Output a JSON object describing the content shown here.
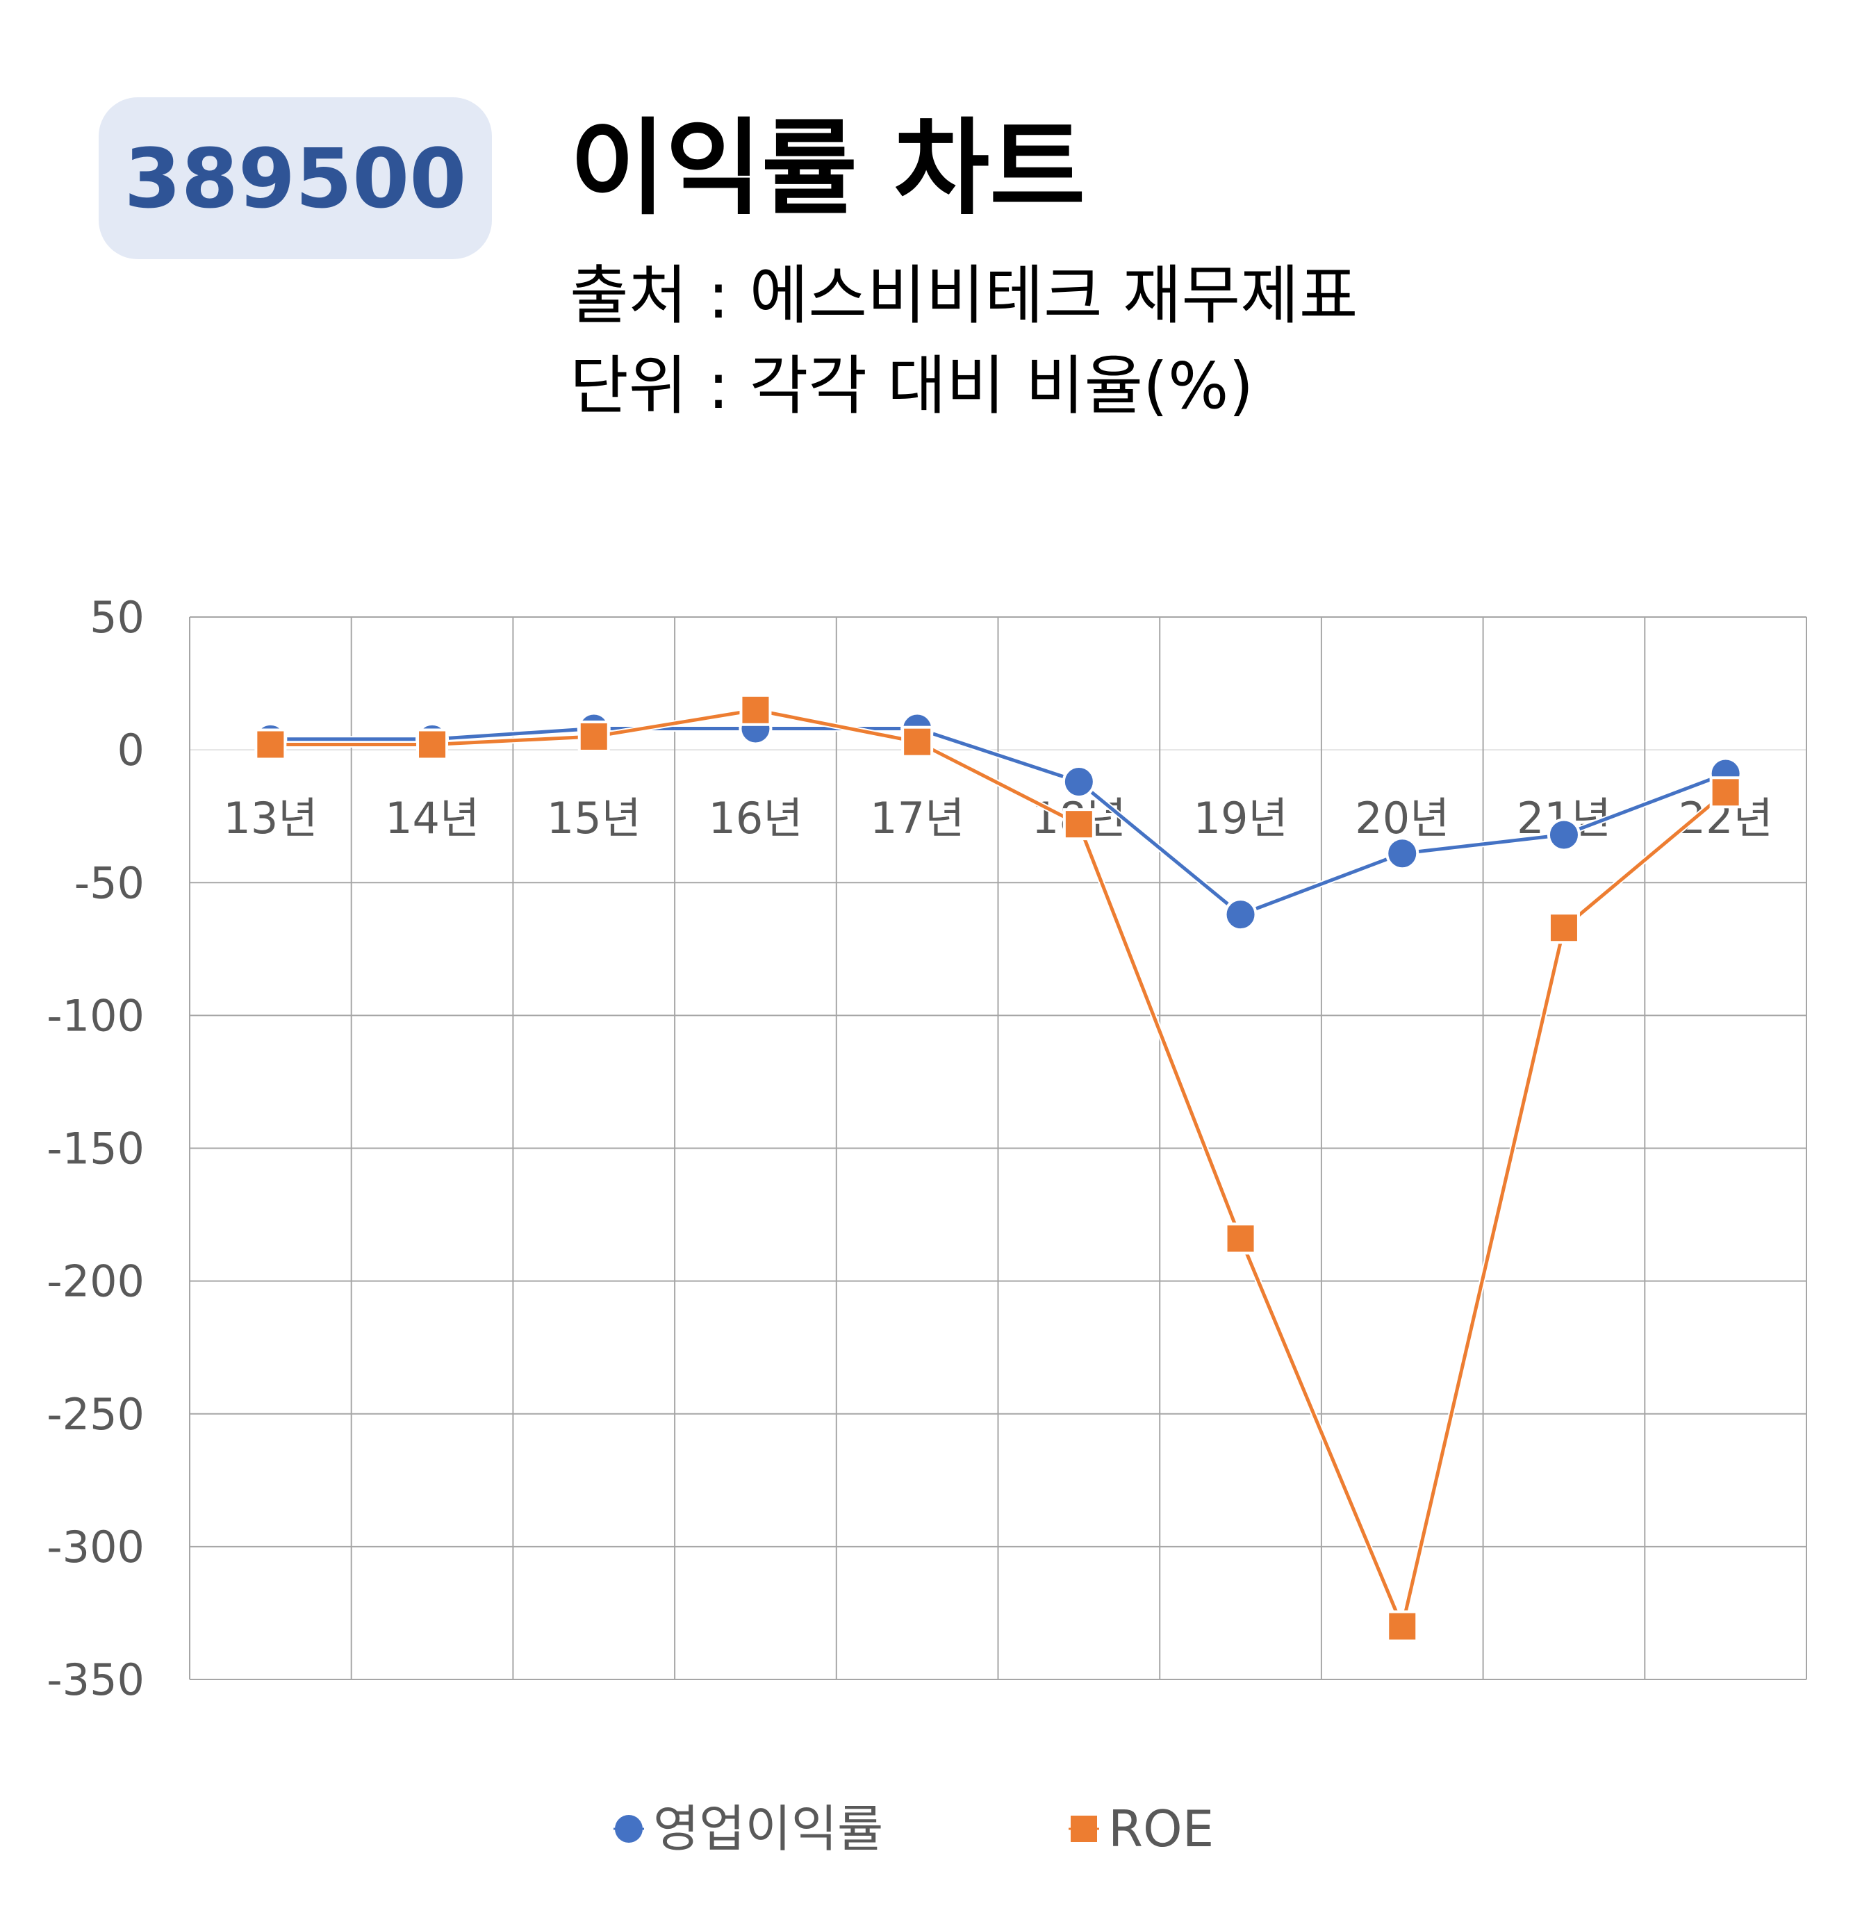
{
  "badge": {
    "code": "389500"
  },
  "header": {
    "title": "이익률 차트",
    "source": "출처 : 에스비비테크 재무제표",
    "unit": "단위 : 각각 대비 비율(%)"
  },
  "colors": {
    "series1": "#4472c4",
    "series2": "#ed7d31",
    "badge_bg": "#e3e9f5",
    "badge_text": "#2f5496",
    "grid": "#a6a6a6"
  },
  "chart_data": {
    "type": "line",
    "categories": [
      "13년",
      "14년",
      "15년",
      "16년",
      "17년",
      "18년",
      "19년",
      "20년",
      "21년",
      "22년"
    ],
    "series": [
      {
        "name": "영업이익률",
        "marker": "circle",
        "values": [
          4,
          4,
          8,
          8,
          8,
          -12,
          -62,
          -39,
          -32,
          -9
        ]
      },
      {
        "name": "ROE",
        "marker": "square",
        "values": [
          2,
          2,
          5,
          15,
          3,
          -28,
          -184,
          -330,
          -67,
          -16
        ]
      }
    ],
    "ylim": [
      -350,
      50
    ],
    "yticks": [
      "50",
      "0",
      "-50",
      "-100",
      "-150",
      "-200",
      "-250",
      "-300",
      "-350"
    ],
    "grid": true,
    "legend": "bottom"
  }
}
